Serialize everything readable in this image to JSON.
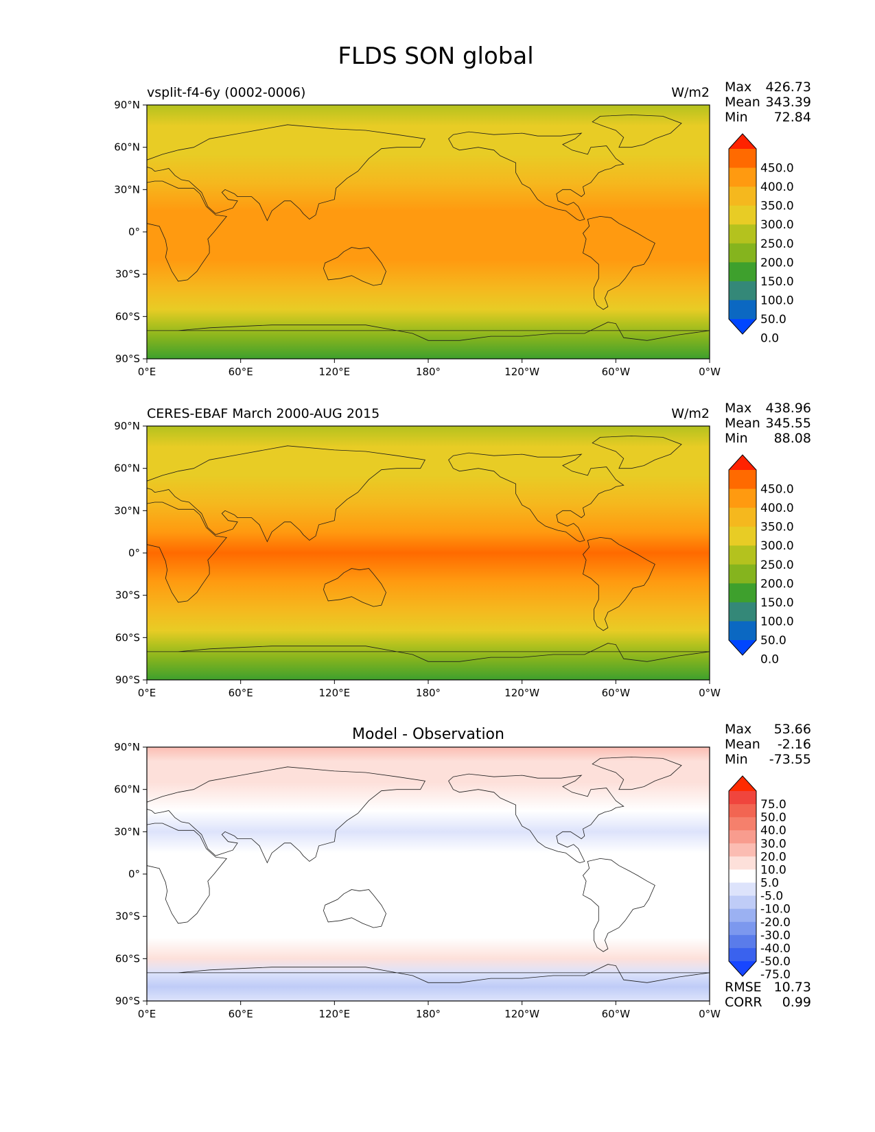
{
  "title": "FLDS SON global",
  "chart_data": [
    {
      "type": "heatmap",
      "title": "vsplit-f4-6y (0002-0006)",
      "units": "W/m2",
      "stats": {
        "max_label": "Max",
        "max": "426.73",
        "mean_label": "Mean",
        "mean": "343.39",
        "min_label": "Min",
        "min": "72.84"
      },
      "colorbar": {
        "labels": [
          "450.0",
          "400.0",
          "350.0",
          "300.0",
          "250.0",
          "200.0",
          "150.0",
          "100.0",
          "50.0",
          "0.0"
        ],
        "colors": [
          "#ff2200",
          "#ff6a00",
          "#ff9a10",
          "#f5b81e",
          "#e8cc25",
          "#b4c21e",
          "#85b41e",
          "#3ea02d",
          "#348878",
          "#0b68c2",
          "#0046ff"
        ],
        "extend": "both"
      },
      "xticks": [
        "0°E",
        "60°E",
        "120°E",
        "180°",
        "120°W",
        "60°W",
        "0°W"
      ],
      "yticks": [
        "90°N",
        "60°N",
        "30°N",
        "0°",
        "30°S",
        "60°S",
        "90°S"
      ],
      "zonal_mean_profile_W_m2": [
        {
          "lat": 90,
          "v": 245
        },
        {
          "lat": 75,
          "v": 275
        },
        {
          "lat": 55,
          "v": 300
        },
        {
          "lat": 35,
          "v": 340
        },
        {
          "lat": 15,
          "v": 390
        },
        {
          "lat": 0,
          "v": 400
        },
        {
          "lat": -20,
          "v": 365
        },
        {
          "lat": -40,
          "v": 330
        },
        {
          "lat": -55,
          "v": 295
        },
        {
          "lat": -65,
          "v": 240
        },
        {
          "lat": -75,
          "v": 160
        },
        {
          "lat": -90,
          "v": 110
        }
      ]
    },
    {
      "type": "heatmap",
      "title": "CERES-EBAF March 2000-AUG 2015",
      "units": "W/m2",
      "stats": {
        "max_label": "Max",
        "max": "438.96",
        "mean_label": "Mean",
        "mean": "345.55",
        "min_label": "Min",
        "min": "88.08"
      },
      "colorbar": {
        "labels": [
          "450.0",
          "400.0",
          "350.0",
          "300.0",
          "250.0",
          "200.0",
          "150.0",
          "100.0",
          "50.0",
          "0.0"
        ],
        "colors": [
          "#ff2200",
          "#ff6a00",
          "#ff9a10",
          "#f5b81e",
          "#e8cc25",
          "#b4c21e",
          "#85b41e",
          "#3ea02d",
          "#348878",
          "#0b68c2",
          "#0046ff"
        ],
        "extend": "both"
      },
      "xticks": [
        "0°E",
        "60°E",
        "120°E",
        "180°",
        "120°W",
        "60°W",
        "0°W"
      ],
      "yticks": [
        "90°N",
        "60°N",
        "30°N",
        "0°",
        "30°S",
        "60°S",
        "90°S"
      ],
      "zonal_mean_profile_W_m2": [
        {
          "lat": 90,
          "v": 220
        },
        {
          "lat": 75,
          "v": 255
        },
        {
          "lat": 55,
          "v": 295
        },
        {
          "lat": 35,
          "v": 345
        },
        {
          "lat": 15,
          "v": 395
        },
        {
          "lat": 0,
          "v": 405
        },
        {
          "lat": -20,
          "v": 370
        },
        {
          "lat": -40,
          "v": 330
        },
        {
          "lat": -55,
          "v": 295
        },
        {
          "lat": -65,
          "v": 235
        },
        {
          "lat": -75,
          "v": 175
        },
        {
          "lat": -90,
          "v": 130
        }
      ]
    },
    {
      "type": "heatmap",
      "title": "Model - Observation",
      "units": "",
      "stats": {
        "max_label": "Max",
        "max": "53.66",
        "mean_label": "Mean",
        "mean": "-2.16",
        "min_label": "Min",
        "min": "-73.55"
      },
      "colorbar": {
        "labels": [
          "75.0",
          "50.0",
          "40.0",
          "30.0",
          "20.0",
          "10.0",
          "5.0",
          "-5.0",
          "-10.0",
          "-20.0",
          "-30.0",
          "-40.0",
          "-50.0",
          "-75.0"
        ],
        "colors": [
          "#ff2a00",
          "#f0453d",
          "#f26552",
          "#f5806c",
          "#f89c8e",
          "#fbbcb2",
          "#fde0da",
          "#ffffff",
          "#dde3fb",
          "#bfccf7",
          "#9bb1f2",
          "#7c98ee",
          "#5a7cea",
          "#3a62ee",
          "#1746ff"
        ],
        "extend": "both"
      },
      "xticks": [
        "0°E",
        "60°E",
        "120°E",
        "180°",
        "120°W",
        "60°W",
        "0°W"
      ],
      "yticks": [
        "90°N",
        "60°N",
        "30°N",
        "0°",
        "30°S",
        "60°S",
        "90°S"
      ],
      "zonal_mean_profile_W_m2": [
        {
          "lat": 90,
          "v": 25
        },
        {
          "lat": 80,
          "v": 15
        },
        {
          "lat": 65,
          "v": 8
        },
        {
          "lat": 45,
          "v": -2
        },
        {
          "lat": 30,
          "v": -8
        },
        {
          "lat": 15,
          "v": -4
        },
        {
          "lat": 0,
          "v": 0
        },
        {
          "lat": -20,
          "v": -3
        },
        {
          "lat": -45,
          "v": 3
        },
        {
          "lat": -60,
          "v": 10
        },
        {
          "lat": -70,
          "v": -8
        },
        {
          "lat": -80,
          "v": -25
        },
        {
          "lat": -90,
          "v": -15
        }
      ],
      "error_stats": {
        "rmse_label": "RMSE",
        "rmse": "10.73",
        "corr_label": "CORR",
        "corr": "0.99"
      }
    }
  ]
}
